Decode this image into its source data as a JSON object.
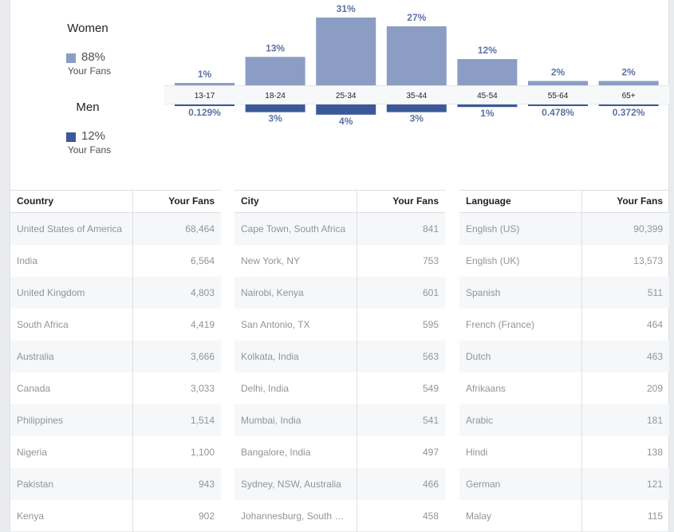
{
  "legend": {
    "women": {
      "title": "Women",
      "percent": "88%",
      "sub": "Your Fans",
      "color": "#8b9dc3"
    },
    "men": {
      "title": "Men",
      "percent": "12%",
      "sub": "Your Fans",
      "color": "#3b5998"
    }
  },
  "chart_data": {
    "type": "bar",
    "categories": [
      "13-17",
      "18-24",
      "25-34",
      "35-44",
      "45-54",
      "55-64",
      "65+"
    ],
    "series": [
      {
        "name": "Women",
        "values": [
          1,
          13,
          31,
          27,
          12,
          2,
          2
        ],
        "labels": [
          "1%",
          "13%",
          "31%",
          "27%",
          "12%",
          "2%",
          "2%"
        ]
      },
      {
        "name": "Men",
        "values": [
          0.129,
          3,
          4,
          3,
          1,
          0.478,
          0.372
        ],
        "labels": [
          "0.129%",
          "3%",
          "4%",
          "3%",
          "1%",
          "0.478%",
          "0.372%"
        ]
      }
    ]
  },
  "tables": [
    {
      "header": "Country",
      "value_header": "Your Fans",
      "rows": [
        {
          "name": "United States of America",
          "value": "68,464"
        },
        {
          "name": "India",
          "value": "6,564"
        },
        {
          "name": "United Kingdom",
          "value": "4,803"
        },
        {
          "name": "South Africa",
          "value": "4,419"
        },
        {
          "name": "Australia",
          "value": "3,666"
        },
        {
          "name": "Canada",
          "value": "3,033"
        },
        {
          "name": "Philippines",
          "value": "1,514"
        },
        {
          "name": "Nigeria",
          "value": "1,100"
        },
        {
          "name": "Pakistan",
          "value": "943"
        },
        {
          "name": "Kenya",
          "value": "902"
        }
      ]
    },
    {
      "header": "City",
      "value_header": "Your Fans",
      "rows": [
        {
          "name": "Cape Town, South Africa",
          "value": "841"
        },
        {
          "name": "New York, NY",
          "value": "753"
        },
        {
          "name": "Nairobi, Kenya",
          "value": "601"
        },
        {
          "name": "San Antonio, TX",
          "value": "595"
        },
        {
          "name": "Kolkata, India",
          "value": "563"
        },
        {
          "name": "Delhi, India",
          "value": "549"
        },
        {
          "name": "Mumbai, India",
          "value": "541"
        },
        {
          "name": "Bangalore, India",
          "value": "497"
        },
        {
          "name": "Sydney, NSW, Australia",
          "value": "466"
        },
        {
          "name": "Johannesburg, South …",
          "value": "458"
        }
      ]
    },
    {
      "header": "Language",
      "value_header": "Your Fans",
      "rows": [
        {
          "name": "English (US)",
          "value": "90,399"
        },
        {
          "name": "English (UK)",
          "value": "13,573"
        },
        {
          "name": "Spanish",
          "value": "511"
        },
        {
          "name": "French (France)",
          "value": "464"
        },
        {
          "name": "Dutch",
          "value": "463"
        },
        {
          "name": "Afrikaans",
          "value": "209"
        },
        {
          "name": "Arabic",
          "value": "181"
        },
        {
          "name": "Hindi",
          "value": "138"
        },
        {
          "name": "German",
          "value": "121"
        },
        {
          "name": "Malay",
          "value": "115"
        }
      ]
    }
  ]
}
